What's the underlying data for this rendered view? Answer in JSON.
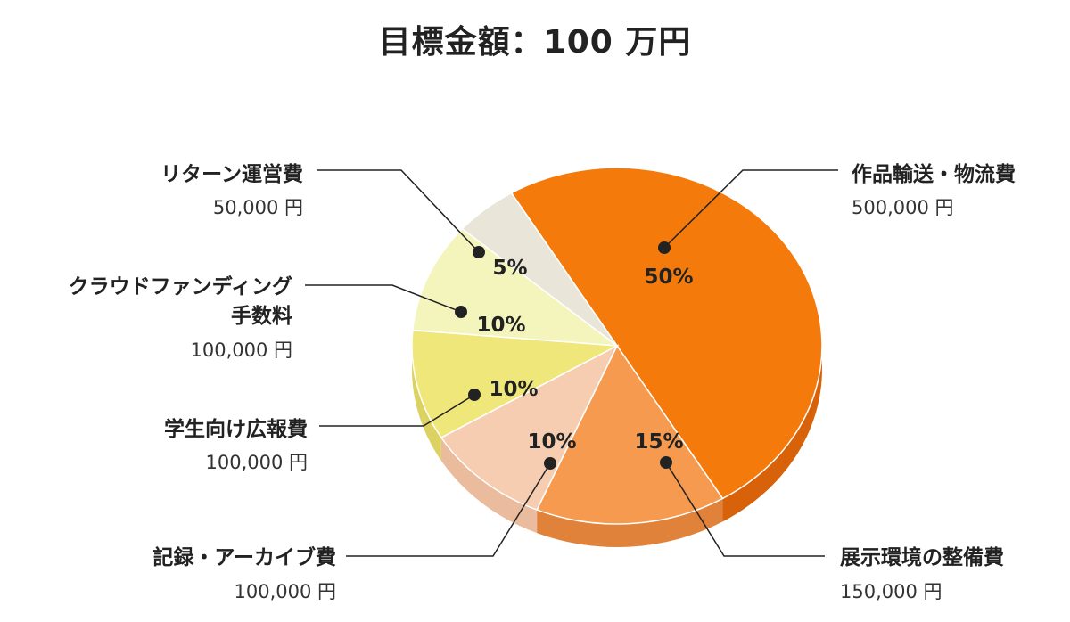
{
  "chart_data": {
    "type": "pie",
    "title": "目標金額：100 万円",
    "slices": [
      {
        "name": "作品輸送・物流費",
        "percent": 50,
        "label": "50%",
        "amount": "500,000 円",
        "color": "#f47a0c",
        "side": "#d7620a"
      },
      {
        "name": "展示環境の整備費",
        "percent": 15,
        "label": "15%",
        "amount": "150,000 円",
        "color": "#f59a4e",
        "side": "#e0823a"
      },
      {
        "name": "記録・アーカイブ費",
        "percent": 10,
        "label": "10%",
        "amount": "100,000 円",
        "color": "#f6cdb1",
        "side": "#eabb9c"
      },
      {
        "name": "学生向け広報費",
        "percent": 10,
        "label": "10%",
        "amount": "100,000 円",
        "color": "#efe77a",
        "side": "#dbd261"
      },
      {
        "name": "クラウドファンディング手数料",
        "name_lines": [
          "クラウドファンディング",
          "手数料"
        ],
        "percent": 10,
        "label": "10%",
        "amount": "100,000 円",
        "color": "#f4f4bd",
        "side": "#e5e5a5"
      },
      {
        "name": "リターン運営費",
        "percent": 5,
        "label": "5%",
        "amount": "50,000 円",
        "color": "#e9e6d9",
        "side": "#d8d5c6"
      }
    ]
  }
}
